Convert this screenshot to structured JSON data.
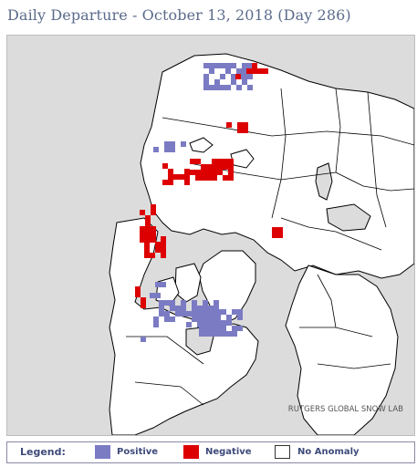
{
  "header": {
    "title": "Daily Departure - October 13, 2018 (Day 286)"
  },
  "map": {
    "credit": "RUTGERS GLOBAL SNOW LAB",
    "colors": {
      "ocean": "#dcdcdc",
      "land": "#ffffff",
      "border": "#000000",
      "positive": "#7b7bc4",
      "negative": "#dd0000"
    }
  },
  "legend": {
    "title": "Legend:",
    "items": [
      {
        "label": "Positive",
        "color": "#7b7bc4"
      },
      {
        "label": "Negative",
        "color": "#dd0000"
      },
      {
        "label": "No Anomaly",
        "color": "#ffffff"
      }
    ]
  }
}
